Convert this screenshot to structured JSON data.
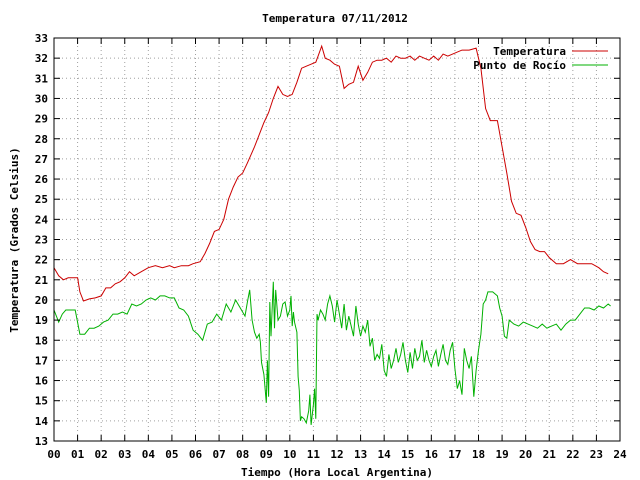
{
  "chart_data": {
    "type": "line",
    "title": "Temperatura 07/11/2012",
    "xlabel": "Tiempo (Hora Local Argentina)",
    "ylabel": "Temperatura (Grados Celsius)",
    "xlim": [
      0,
      24
    ],
    "ylim": [
      13,
      33
    ],
    "x_ticks": [
      "00",
      "01",
      "02",
      "03",
      "04",
      "05",
      "06",
      "07",
      "08",
      "09",
      "10",
      "11",
      "12",
      "13",
      "14",
      "15",
      "16",
      "17",
      "18",
      "19",
      "20",
      "21",
      "22",
      "23",
      "24"
    ],
    "y_ticks": [
      "13",
      "14",
      "15",
      "16",
      "17",
      "18",
      "19",
      "20",
      "21",
      "22",
      "23",
      "24",
      "25",
      "26",
      "27",
      "28",
      "29",
      "30",
      "31",
      "32",
      "33"
    ],
    "grid": true,
    "legend_position": "top-right",
    "series": [
      {
        "name": "Temperatura",
        "color": "#cc0000",
        "points": [
          [
            0.0,
            21.6
          ],
          [
            0.2,
            21.2
          ],
          [
            0.4,
            21.0
          ],
          [
            0.6,
            21.1
          ],
          [
            0.8,
            21.1
          ],
          [
            1.0,
            21.1
          ],
          [
            1.1,
            20.4
          ],
          [
            1.25,
            19.95
          ],
          [
            1.5,
            20.05
          ],
          [
            1.75,
            20.1
          ],
          [
            2.0,
            20.2
          ],
          [
            2.2,
            20.6
          ],
          [
            2.4,
            20.6
          ],
          [
            2.6,
            20.8
          ],
          [
            2.8,
            20.9
          ],
          [
            3.0,
            21.1
          ],
          [
            3.2,
            21.4
          ],
          [
            3.4,
            21.2
          ],
          [
            3.7,
            21.4
          ],
          [
            4.0,
            21.6
          ],
          [
            4.3,
            21.7
          ],
          [
            4.6,
            21.6
          ],
          [
            4.9,
            21.7
          ],
          [
            5.1,
            21.6
          ],
          [
            5.4,
            21.7
          ],
          [
            5.7,
            21.7
          ],
          [
            5.9,
            21.8
          ],
          [
            6.2,
            21.9
          ],
          [
            6.4,
            22.3
          ],
          [
            6.6,
            22.8
          ],
          [
            6.8,
            23.4
          ],
          [
            7.0,
            23.5
          ],
          [
            7.2,
            24.0
          ],
          [
            7.4,
            25.0
          ],
          [
            7.6,
            25.6
          ],
          [
            7.8,
            26.1
          ],
          [
            8.0,
            26.3
          ],
          [
            8.2,
            26.8
          ],
          [
            8.5,
            27.6
          ],
          [
            8.7,
            28.2
          ],
          [
            8.9,
            28.8
          ],
          [
            9.1,
            29.3
          ],
          [
            9.3,
            30.0
          ],
          [
            9.5,
            30.6
          ],
          [
            9.7,
            30.2
          ],
          [
            9.9,
            30.1
          ],
          [
            10.1,
            30.2
          ],
          [
            10.3,
            30.8
          ],
          [
            10.5,
            31.5
          ],
          [
            10.7,
            31.6
          ],
          [
            10.9,
            31.7
          ],
          [
            11.1,
            31.8
          ],
          [
            11.2,
            32.1
          ],
          [
            11.35,
            32.6
          ],
          [
            11.5,
            32.0
          ],
          [
            11.7,
            31.9
          ],
          [
            11.9,
            31.7
          ],
          [
            12.1,
            31.6
          ],
          [
            12.3,
            30.5
          ],
          [
            12.5,
            30.7
          ],
          [
            12.7,
            30.8
          ],
          [
            12.9,
            31.6
          ],
          [
            13.1,
            30.9
          ],
          [
            13.3,
            31.3
          ],
          [
            13.5,
            31.8
          ],
          [
            13.7,
            31.9
          ],
          [
            13.9,
            31.9
          ],
          [
            14.1,
            32.0
          ],
          [
            14.3,
            31.8
          ],
          [
            14.5,
            32.1
          ],
          [
            14.7,
            32.0
          ],
          [
            14.9,
            32.0
          ],
          [
            15.1,
            32.1
          ],
          [
            15.3,
            31.9
          ],
          [
            15.5,
            32.1
          ],
          [
            15.7,
            32.0
          ],
          [
            15.9,
            31.9
          ],
          [
            16.1,
            32.1
          ],
          [
            16.3,
            31.9
          ],
          [
            16.5,
            32.2
          ],
          [
            16.7,
            32.1
          ],
          [
            16.9,
            32.2
          ],
          [
            17.1,
            32.3
          ],
          [
            17.3,
            32.4
          ],
          [
            17.6,
            32.4
          ],
          [
            17.9,
            32.5
          ],
          [
            18.1,
            31.5
          ],
          [
            18.3,
            29.5
          ],
          [
            18.5,
            28.9
          ],
          [
            18.8,
            28.9
          ],
          [
            19.0,
            27.6
          ],
          [
            19.2,
            26.3
          ],
          [
            19.4,
            24.9
          ],
          [
            19.6,
            24.3
          ],
          [
            19.8,
            24.2
          ],
          [
            20.0,
            23.6
          ],
          [
            20.2,
            22.9
          ],
          [
            20.4,
            22.5
          ],
          [
            20.6,
            22.4
          ],
          [
            20.8,
            22.4
          ],
          [
            21.0,
            22.1
          ],
          [
            21.3,
            21.8
          ],
          [
            21.6,
            21.8
          ],
          [
            21.9,
            22.0
          ],
          [
            22.2,
            21.8
          ],
          [
            22.5,
            21.8
          ],
          [
            22.8,
            21.8
          ],
          [
            23.1,
            21.6
          ],
          [
            23.3,
            21.4
          ],
          [
            23.5,
            21.3
          ]
        ]
      },
      {
        "name": "Punto de Rocío",
        "color": "#00b000",
        "points": [
          [
            0.0,
            19.5
          ],
          [
            0.2,
            18.9
          ],
          [
            0.35,
            19.3
          ],
          [
            0.5,
            19.5
          ],
          [
            0.7,
            19.5
          ],
          [
            0.9,
            19.5
          ],
          [
            1.1,
            18.3
          ],
          [
            1.3,
            18.3
          ],
          [
            1.5,
            18.6
          ],
          [
            1.7,
            18.6
          ],
          [
            1.9,
            18.7
          ],
          [
            2.1,
            18.9
          ],
          [
            2.3,
            19.0
          ],
          [
            2.5,
            19.3
          ],
          [
            2.7,
            19.3
          ],
          [
            2.9,
            19.4
          ],
          [
            3.1,
            19.3
          ],
          [
            3.3,
            19.8
          ],
          [
            3.5,
            19.7
          ],
          [
            3.7,
            19.8
          ],
          [
            3.9,
            20.0
          ],
          [
            4.1,
            20.1
          ],
          [
            4.3,
            20.0
          ],
          [
            4.5,
            20.2
          ],
          [
            4.7,
            20.2
          ],
          [
            4.9,
            20.1
          ],
          [
            5.1,
            20.1
          ],
          [
            5.3,
            19.6
          ],
          [
            5.5,
            19.5
          ],
          [
            5.7,
            19.2
          ],
          [
            5.9,
            18.5
          ],
          [
            6.1,
            18.3
          ],
          [
            6.3,
            18.0
          ],
          [
            6.5,
            18.8
          ],
          [
            6.7,
            18.9
          ],
          [
            6.9,
            19.3
          ],
          [
            7.1,
            19.0
          ],
          [
            7.3,
            19.8
          ],
          [
            7.5,
            19.4
          ],
          [
            7.7,
            20.0
          ],
          [
            7.9,
            19.6
          ],
          [
            8.1,
            19.2
          ],
          [
            8.2,
            19.9
          ],
          [
            8.3,
            20.5
          ],
          [
            8.4,
            19.0
          ],
          [
            8.5,
            18.4
          ],
          [
            8.6,
            18.1
          ],
          [
            8.7,
            18.3
          ],
          [
            8.75,
            17.9
          ],
          [
            8.8,
            16.9
          ],
          [
            8.9,
            16.3
          ],
          [
            9.0,
            14.9
          ],
          [
            9.05,
            17.0
          ],
          [
            9.1,
            15.2
          ],
          [
            9.15,
            19.9
          ],
          [
            9.2,
            18.2
          ],
          [
            9.3,
            20.9
          ],
          [
            9.35,
            18.6
          ],
          [
            9.4,
            20.5
          ],
          [
            9.5,
            19.0
          ],
          [
            9.6,
            19.2
          ],
          [
            9.7,
            19.8
          ],
          [
            9.8,
            19.9
          ],
          [
            9.9,
            19.2
          ],
          [
            10.0,
            19.5
          ],
          [
            10.05,
            20.2
          ],
          [
            10.1,
            18.7
          ],
          [
            10.15,
            19.4
          ],
          [
            10.2,
            18.9
          ],
          [
            10.3,
            18.4
          ],
          [
            10.35,
            16.2
          ],
          [
            10.4,
            15.5
          ],
          [
            10.45,
            14.0
          ],
          [
            10.5,
            14.2
          ],
          [
            10.6,
            14.1
          ],
          [
            10.7,
            13.9
          ],
          [
            10.8,
            14.5
          ],
          [
            10.85,
            15.3
          ],
          [
            10.9,
            13.8
          ],
          [
            11.0,
            14.8
          ],
          [
            11.05,
            15.6
          ],
          [
            11.1,
            14.1
          ],
          [
            11.15,
            19.3
          ],
          [
            11.2,
            19.0
          ],
          [
            11.3,
            19.5
          ],
          [
            11.4,
            19.3
          ],
          [
            11.5,
            19.0
          ],
          [
            11.6,
            19.8
          ],
          [
            11.7,
            20.2
          ],
          [
            11.8,
            19.7
          ],
          [
            11.9,
            18.9
          ],
          [
            12.0,
            20.0
          ],
          [
            12.1,
            19.3
          ],
          [
            12.2,
            18.6
          ],
          [
            12.3,
            19.8
          ],
          [
            12.4,
            18.5
          ],
          [
            12.5,
            19.2
          ],
          [
            12.6,
            18.7
          ],
          [
            12.7,
            18.2
          ],
          [
            12.8,
            19.7
          ],
          [
            12.9,
            18.8
          ],
          [
            13.0,
            18.2
          ],
          [
            13.1,
            18.7
          ],
          [
            13.2,
            18.4
          ],
          [
            13.3,
            19.0
          ],
          [
            13.4,
            17.7
          ],
          [
            13.5,
            18.1
          ],
          [
            13.6,
            17.0
          ],
          [
            13.7,
            17.3
          ],
          [
            13.8,
            17.1
          ],
          [
            13.9,
            17.8
          ],
          [
            14.0,
            16.5
          ],
          [
            14.1,
            16.2
          ],
          [
            14.2,
            17.3
          ],
          [
            14.3,
            16.6
          ],
          [
            14.4,
            17.0
          ],
          [
            14.5,
            17.6
          ],
          [
            14.6,
            16.9
          ],
          [
            14.7,
            17.3
          ],
          [
            14.8,
            17.9
          ],
          [
            14.9,
            17.0
          ],
          [
            15.0,
            16.4
          ],
          [
            15.1,
            17.4
          ],
          [
            15.2,
            16.6
          ],
          [
            15.3,
            17.6
          ],
          [
            15.4,
            17.0
          ],
          [
            15.5,
            17.2
          ],
          [
            15.6,
            18.0
          ],
          [
            15.7,
            16.9
          ],
          [
            15.8,
            17.5
          ],
          [
            15.9,
            17.0
          ],
          [
            16.0,
            16.7
          ],
          [
            16.1,
            17.2
          ],
          [
            16.2,
            17.5
          ],
          [
            16.3,
            16.7
          ],
          [
            16.4,
            17.3
          ],
          [
            16.5,
            17.8
          ],
          [
            16.6,
            17.0
          ],
          [
            16.7,
            16.8
          ],
          [
            16.8,
            17.5
          ],
          [
            16.9,
            17.9
          ],
          [
            17.0,
            16.6
          ],
          [
            17.1,
            15.6
          ],
          [
            17.2,
            16.0
          ],
          [
            17.3,
            15.3
          ],
          [
            17.4,
            17.6
          ],
          [
            17.5,
            17.0
          ],
          [
            17.6,
            16.6
          ],
          [
            17.7,
            17.2
          ],
          [
            17.8,
            15.2
          ],
          [
            17.9,
            16.5
          ],
          [
            18.0,
            17.5
          ],
          [
            18.1,
            18.3
          ],
          [
            18.2,
            19.8
          ],
          [
            18.3,
            20.0
          ],
          [
            18.4,
            20.4
          ],
          [
            18.6,
            20.4
          ],
          [
            18.8,
            20.2
          ],
          [
            18.9,
            19.6
          ],
          [
            19.0,
            19.2
          ],
          [
            19.1,
            18.2
          ],
          [
            19.2,
            18.1
          ],
          [
            19.3,
            19.0
          ],
          [
            19.5,
            18.8
          ],
          [
            19.7,
            18.7
          ],
          [
            19.9,
            18.9
          ],
          [
            20.1,
            18.8
          ],
          [
            20.3,
            18.7
          ],
          [
            20.5,
            18.6
          ],
          [
            20.7,
            18.8
          ],
          [
            20.9,
            18.6
          ],
          [
            21.1,
            18.7
          ],
          [
            21.3,
            18.8
          ],
          [
            21.5,
            18.5
          ],
          [
            21.7,
            18.8
          ],
          [
            21.9,
            19.0
          ],
          [
            22.1,
            19.0
          ],
          [
            22.3,
            19.3
          ],
          [
            22.5,
            19.6
          ],
          [
            22.7,
            19.6
          ],
          [
            22.9,
            19.5
          ],
          [
            23.1,
            19.7
          ],
          [
            23.3,
            19.6
          ],
          [
            23.5,
            19.8
          ],
          [
            23.6,
            19.7
          ]
        ]
      }
    ]
  }
}
